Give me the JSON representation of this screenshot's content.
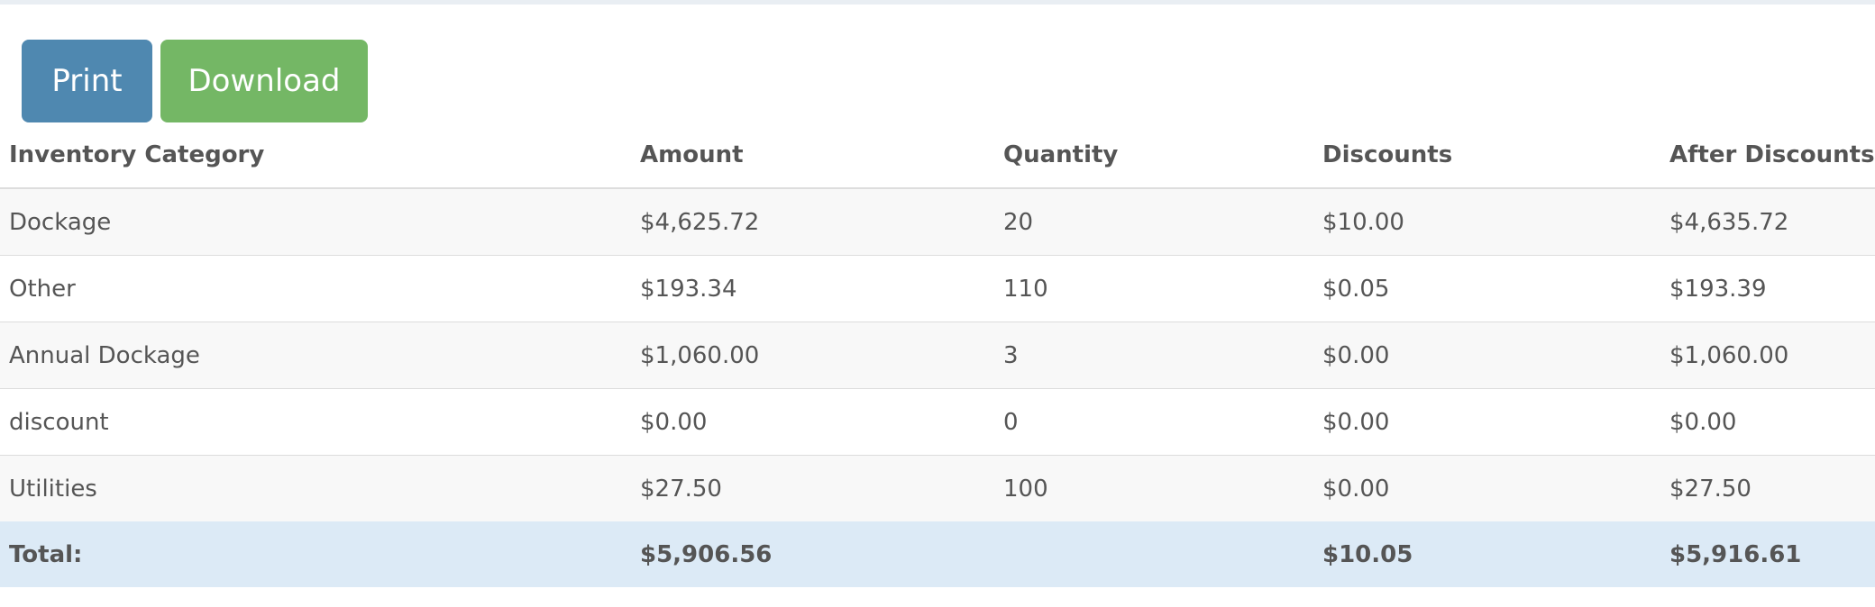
{
  "toolbar": {
    "print_label": "Print",
    "download_label": "Download"
  },
  "colors": {
    "print_button": "#4f88b0",
    "download_button": "#74b765",
    "total_row": "#dceaf6",
    "stripe": "#f8f8f8"
  },
  "table": {
    "headers": [
      "Inventory Category",
      "Amount",
      "Quantity",
      "Discounts",
      "After Discounts"
    ],
    "rows": [
      [
        "Dockage",
        "$4,625.72",
        "20",
        "$10.00",
        "$4,635.72"
      ],
      [
        "Other",
        "$193.34",
        "110",
        "$0.05",
        "$193.39"
      ],
      [
        "Annual Dockage",
        "$1,060.00",
        "3",
        "$0.00",
        "$1,060.00"
      ],
      [
        "discount",
        "$0.00",
        "0",
        "$0.00",
        "$0.00"
      ],
      [
        "Utilities",
        "$27.50",
        "100",
        "$0.00",
        "$27.50"
      ]
    ],
    "total": [
      "Total:",
      "$5,906.56",
      "",
      "$10.05",
      "$5,916.61"
    ]
  }
}
